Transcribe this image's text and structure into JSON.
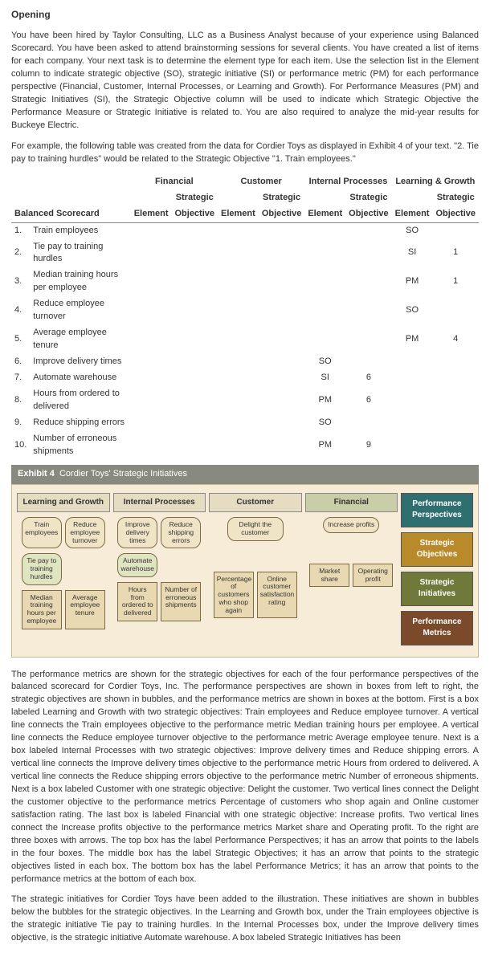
{
  "heading": "Opening",
  "para1": "You have been hired by Taylor Consulting, LLC as a Business Analyst because of your experience using Balanced Scorecard. You have been asked to attend brainstorming sessions for several clients. You have created a list of items for each company. Your next task is to determine the element type for each item. Use the selection list in the Element column to indicate strategic objective (SO), strategic initiative (SI) or performance metric (PM) for each performance perspective (Financial, Customer, Internal Processes, or Learning and Growth). For Performance Measures (PM) and Strategic Initiatives (SI), the Strategic Objective column will be used to indicate which Strategic Objective the Performance Measure or Strategic Initiative is related to. You are also required to analyze the mid-year results for Buckeye Electric.",
  "para2": "For example, the following table was created from the data for Cordier Toys as displayed in Exhibit 4 of your text. \"2. Tie pay to training hurdles\" would be related to the Strategic Objective \"1. Train employees.\"",
  "table": {
    "top_headers": [
      "Financial",
      "Customer",
      "Internal Processes",
      "Learning & Growth"
    ],
    "sub_header_left": "Balanced Scorecard",
    "sub_pair": [
      "Element",
      "Strategic Objective"
    ],
    "rows": [
      {
        "n": "1.",
        "label": "Train employees",
        "vals": [
          "",
          "",
          "",
          "",
          "",
          "",
          "SO",
          ""
        ]
      },
      {
        "n": "2.",
        "label": "Tie pay to training hurdles",
        "vals": [
          "",
          "",
          "",
          "",
          "",
          "",
          "SI",
          "1"
        ]
      },
      {
        "n": "3.",
        "label": "Median training hours per employee",
        "vals": [
          "",
          "",
          "",
          "",
          "",
          "",
          "PM",
          "1"
        ]
      },
      {
        "n": "4.",
        "label": "Reduce employee turnover",
        "vals": [
          "",
          "",
          "",
          "",
          "",
          "",
          "SO",
          ""
        ]
      },
      {
        "n": "5.",
        "label": "Average employee tenure",
        "vals": [
          "",
          "",
          "",
          "",
          "",
          "",
          "PM",
          "4"
        ]
      },
      {
        "n": "6.",
        "label": "Improve delivery times",
        "vals": [
          "",
          "",
          "",
          "",
          "SO",
          "",
          "",
          ""
        ]
      },
      {
        "n": "7.",
        "label": "Automate warehouse",
        "vals": [
          "",
          "",
          "",
          "",
          "SI",
          "6",
          "",
          ""
        ]
      },
      {
        "n": "8.",
        "label": "Hours from ordered to delivered",
        "vals": [
          "",
          "",
          "",
          "",
          "PM",
          "6",
          "",
          ""
        ]
      },
      {
        "n": "9.",
        "label": "Reduce shipping errors",
        "vals": [
          "",
          "",
          "",
          "",
          "SO",
          "",
          "",
          ""
        ]
      },
      {
        "n": "10.",
        "label": "Number of erroneous shipments",
        "vals": [
          "",
          "",
          "",
          "",
          "PM",
          "9",
          "",
          ""
        ]
      }
    ]
  },
  "exhibit_label": "Exhibit 4",
  "exhibit_title": "Cordier Toys' Strategic Initiatives",
  "diagram": {
    "cols": {
      "lg": "Learning and Growth",
      "ip": "Internal Processes",
      "cu": "Customer",
      "fi": "Financial"
    },
    "side": {
      "pp": "Performance Perspectives",
      "so": "Strategic Objectives",
      "si": "Strategic Initiatives",
      "pm": "Performance Metrics"
    },
    "lg_so": [
      "Train employees",
      "Reduce employee turnover"
    ],
    "lg_si": [
      "Tie pay to training hurdles"
    ],
    "lg_pm": [
      "Median training hours per employee",
      "Average employee tenure"
    ],
    "ip_so": [
      "Improve delivery times",
      "Reduce shipping errors"
    ],
    "ip_si": [
      "Automate warehouse"
    ],
    "ip_pm": [
      "Hours from ordered to delivered",
      "Number of erroneous shipments"
    ],
    "cu_so": [
      "Delight the customer"
    ],
    "cu_pm": [
      "Percentage of customers who shop again",
      "Online customer satisfaction rating"
    ],
    "fi_so": [
      "Increase profits"
    ],
    "fi_pm": [
      "Market share",
      "Operating profit"
    ]
  },
  "para3": "The performance metrics are shown for the strategic objectives for each of the four performance perspectives of the balanced scorecard for Cordier Toys, Inc. The performance perspectives are shown in boxes from left to right, the strategic objectives are shown in bubbles, and the performance metrics are shown in boxes at the bottom. First is a box labeled Learning and Growth with two strategic objectives: Train employees and Reduce employee turnover. A vertical line connects the Train employees objective to the performance metric Median training hours per employee. A vertical line connects the Reduce employee turnover objective to the performance metric Average employee tenure. Next is a box labeled Internal Processes with two strategic objectives: Improve delivery times and Reduce shipping errors. A vertical line connects the Improve delivery times objective to the performance metric Hours from ordered to delivered. A vertical line connects the Reduce shipping errors objective to the performance metric Number of erroneous shipments. Next is a box labeled Customer with one strategic objective: Delight the customer. Two vertical lines connect the Delight the customer objective to the performance metrics Percentage of customers who shop again and Online customer satisfaction rating. The last box is labeled Financial with one strategic objective: Increase profits. Two vertical lines connect the Increase profits objective to the performance metrics Market share and Operating profit. To the right are three boxes with arrows. The top box has the label Performance Perspectives; it has an arrow that points to the labels in the four boxes. The middle box has the label Strategic Objectives; it has an arrow that points to the strategic objectives listed in each box. The bottom box has the label Performance Metrics; it has an arrow that points to the performance metrics at the bottom of each box.",
  "para4": "The strategic initiatives for Cordier Toys have been added to the illustration. These initiatives are shown in bubbles below the bubbles for the strategic objectives. In the Learning and Growth box, under the Train employees objective is the strategic initiative Tie pay to training hurdles. In the Internal Processes box, under the Improve delivery times objective, is the strategic initiative Automate warehouse. A box labeled Strategic Initiatives has been"
}
